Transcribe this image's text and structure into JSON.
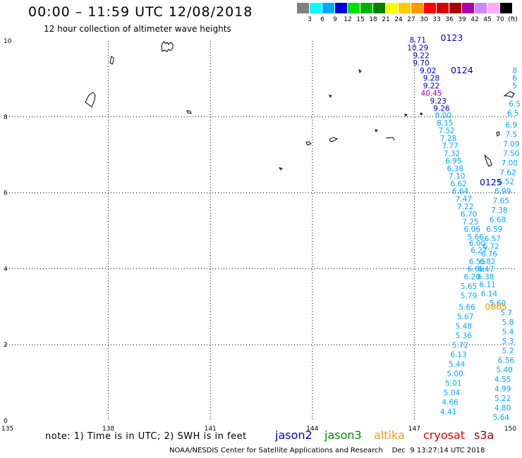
{
  "header": {
    "title": "00:00 – 11:59 UTC 12/08/2018",
    "subtitle": "12 hour collection of altimeter wave heights"
  },
  "color_scale": {
    "labels": [
      "3",
      "6",
      "9",
      "12",
      "15",
      "18",
      "21",
      "24",
      "27",
      "30",
      "33",
      "36",
      "39",
      "42",
      "45",
      "70",
      "(ft)"
    ],
    "colors": [
      "#808080",
      "#00ffff",
      "#00aaff",
      "#0000dd",
      "#00e000",
      "#00b000",
      "#008000",
      "#ffff00",
      "#ffcc00",
      "#ff9900",
      "#ff0000",
      "#dd0000",
      "#aa0000",
      "#aa00aa",
      "#cc88ff",
      "#ffaaff",
      "#000000"
    ]
  },
  "chart_data": {
    "type": "scatter",
    "xlim": [
      135,
      150
    ],
    "ylim": [
      0,
      10
    ],
    "x_ticks": [
      "135",
      "138",
      "141",
      "144",
      "147",
      "150"
    ],
    "y_ticks": [
      "0",
      "2",
      "4",
      "6",
      "8",
      "10"
    ],
    "grid": true,
    "units": "ft",
    "series": [
      {
        "name": "jason2",
        "color": "#0000cc",
        "points": [
          {
            "x": 147.1,
            "y": 9.95,
            "v": "8.71"
          },
          {
            "x": 147.1,
            "y": 9.75,
            "v": "10.29"
          },
          {
            "x": 147.2,
            "y": 9.55,
            "v": "9.22"
          },
          {
            "x": 147.2,
            "y": 9.35,
            "v": "9.70"
          },
          {
            "x": 147.4,
            "y": 9.15,
            "v": "9.02"
          },
          {
            "x": 147.5,
            "y": 8.95,
            "v": "9.28"
          },
          {
            "x": 147.5,
            "y": 8.75,
            "v": "9.22"
          },
          {
            "x": 147.5,
            "y": 8.55,
            "v": "40.45",
            "color": "#aa00aa"
          },
          {
            "x": 147.7,
            "y": 8.35,
            "v": "9.23"
          },
          {
            "x": 147.8,
            "y": 8.15,
            "v": "9.26"
          }
        ]
      },
      {
        "name": "jason2-track-a",
        "color": "#00aaff",
        "points": [
          {
            "x": 147.85,
            "y": 7.97,
            "v": "8.00"
          },
          {
            "x": 147.9,
            "y": 7.77,
            "v": "8.15"
          },
          {
            "x": 147.95,
            "y": 7.57,
            "v": "7.52"
          },
          {
            "x": 148.0,
            "y": 7.37,
            "v": "7.28"
          },
          {
            "x": 148.05,
            "y": 7.17,
            "v": "7.77"
          },
          {
            "x": 148.1,
            "y": 6.97,
            "v": "7.32"
          },
          {
            "x": 148.15,
            "y": 6.77,
            "v": "6.95"
          },
          {
            "x": 148.2,
            "y": 6.57,
            "v": "6.38"
          },
          {
            "x": 148.25,
            "y": 6.37,
            "v": "7.10"
          },
          {
            "x": 148.3,
            "y": 6.17,
            "v": "6.62"
          },
          {
            "x": 148.35,
            "y": 5.97,
            "v": "6.64"
          },
          {
            "x": 148.45,
            "y": 5.77,
            "v": "7.47"
          },
          {
            "x": 148.5,
            "y": 5.57,
            "v": "7.22"
          },
          {
            "x": 148.6,
            "y": 5.37,
            "v": "6.70"
          },
          {
            "x": 148.65,
            "y": 5.17,
            "v": "7.25"
          },
          {
            "x": 148.7,
            "y": 4.97,
            "v": "6.06"
          },
          {
            "x": 148.8,
            "y": 4.77,
            "v": "5.66"
          },
          {
            "x": 148.85,
            "y": 4.6,
            "v": "6.00"
          },
          {
            "x": 148.9,
            "y": 4.42,
            "v": "6.27"
          },
          {
            "x": 148.85,
            "y": 4.12,
            "v": "6.55"
          },
          {
            "x": 148.8,
            "y": 3.92,
            "v": "6.66"
          },
          {
            "x": 148.7,
            "y": 3.72,
            "v": "6.20"
          },
          {
            "x": 148.6,
            "y": 3.47,
            "v": "5.65"
          },
          {
            "x": 148.6,
            "y": 3.22,
            "v": "5.79"
          },
          {
            "x": 148.55,
            "y": 2.92,
            "v": "5.66"
          },
          {
            "x": 148.5,
            "y": 2.67,
            "v": "5.67"
          },
          {
            "x": 148.45,
            "y": 2.42,
            "v": "5.48"
          },
          {
            "x": 148.45,
            "y": 2.17,
            "v": "5.36"
          },
          {
            "x": 148.35,
            "y": 1.92,
            "v": "5.72"
          },
          {
            "x": 148.3,
            "y": 1.67,
            "v": "6.13"
          },
          {
            "x": 148.25,
            "y": 1.42,
            "v": "5.44"
          },
          {
            "x": 148.2,
            "y": 1.17,
            "v": "5.00"
          },
          {
            "x": 148.15,
            "y": 0.92,
            "v": "5.01"
          },
          {
            "x": 148.1,
            "y": 0.67,
            "v": "5.04"
          },
          {
            "x": 148.05,
            "y": 0.42,
            "v": "4.66"
          },
          {
            "x": 148.0,
            "y": 0.17,
            "v": "4.41"
          }
        ]
      },
      {
        "name": "jason2-track-b",
        "color": "#00aaff",
        "points": [
          {
            "x": 149.95,
            "y": 8.27,
            "v": "6.5"
          },
          {
            "x": 149.9,
            "y": 8.02,
            "v": "6.5"
          },
          {
            "x": 149.85,
            "y": 7.72,
            "v": "6.9"
          },
          {
            "x": 149.85,
            "y": 7.47,
            "v": "7.5"
          },
          {
            "x": 149.85,
            "y": 7.22,
            "v": "7.09"
          },
          {
            "x": 149.85,
            "y": 6.97,
            "v": "7.50"
          },
          {
            "x": 149.8,
            "y": 6.72,
            "v": "7.00"
          },
          {
            "x": 149.75,
            "y": 6.47,
            "v": "7.62"
          },
          {
            "x": 149.7,
            "y": 6.22,
            "v": "6.52"
          },
          {
            "x": 149.6,
            "y": 5.97,
            "v": "6.99"
          },
          {
            "x": 149.55,
            "y": 5.72,
            "v": "7.65"
          },
          {
            "x": 149.5,
            "y": 5.47,
            "v": "7.38"
          },
          {
            "x": 149.45,
            "y": 5.22,
            "v": "6.68"
          },
          {
            "x": 149.35,
            "y": 4.97,
            "v": "6.59"
          },
          {
            "x": 149.3,
            "y": 4.72,
            "v": "6.57"
          },
          {
            "x": 149.25,
            "y": 4.52,
            "v": "6.72"
          },
          {
            "x": 149.2,
            "y": 4.32,
            "v": "6.76"
          },
          {
            "x": 149.15,
            "y": 4.12,
            "v": "6.82"
          },
          {
            "x": 149.1,
            "y": 3.92,
            "v": "6.47"
          },
          {
            "x": 149.1,
            "y": 3.72,
            "v": "6.38"
          },
          {
            "x": 149.15,
            "y": 3.52,
            "v": "6.11"
          },
          {
            "x": 149.2,
            "y": 3.27,
            "v": "6.14"
          },
          {
            "x": 149.45,
            "y": 3.02,
            "v": "5.60"
          },
          {
            "x": 149.7,
            "y": 2.77,
            "v": "5.7"
          },
          {
            "x": 149.75,
            "y": 2.52,
            "v": "5.8"
          },
          {
            "x": 149.75,
            "y": 2.27,
            "v": "5.4"
          },
          {
            "x": 149.75,
            "y": 2.02,
            "v": "5.3"
          },
          {
            "x": 149.75,
            "y": 1.77,
            "v": "5.2"
          },
          {
            "x": 149.7,
            "y": 1.52,
            "v": "6.56"
          },
          {
            "x": 149.65,
            "y": 1.27,
            "v": "5.40"
          },
          {
            "x": 149.6,
            "y": 1.02,
            "v": "4.55"
          },
          {
            "x": 149.6,
            "y": 0.77,
            "v": "4.99"
          },
          {
            "x": 149.6,
            "y": 0.52,
            "v": "5.22"
          },
          {
            "x": 149.6,
            "y": 0.27,
            "v": "4.80"
          },
          {
            "x": 149.55,
            "y": 0.02,
            "v": "5.64"
          }
        ]
      },
      {
        "name": "jason2-track-c",
        "color": "#00aaff",
        "points": [
          {
            "x": 149.95,
            "y": 9.15,
            "v": "8"
          },
          {
            "x": 149.95,
            "y": 8.95,
            "v": "6"
          },
          {
            "x": 149.95,
            "y": 8.75,
            "v": "5"
          }
        ]
      }
    ],
    "time_labels": [
      {
        "x": 148.1,
        "y": 10.0,
        "v": "0123",
        "color": "#0000cc"
      },
      {
        "x": 148.4,
        "y": 9.15,
        "v": "0124",
        "color": "#0000cc"
      },
      {
        "x": 149.25,
        "y": 6.2,
        "v": "0125",
        "color": "#0000cc"
      },
      {
        "x": 149.4,
        "y": 2.92,
        "v": "0805",
        "color": "#ff9900"
      }
    ]
  },
  "legend": {
    "note": "note: 1) Time is in UTC; 2) SWH is in feet",
    "satellites": [
      {
        "label": "jason2",
        "color": "#0000cc"
      },
      {
        "label": "jason3",
        "color": "#008800"
      },
      {
        "label": "altika",
        "color": "#ff9900"
      },
      {
        "label": "cryosat",
        "color": "#dd0000"
      },
      {
        "label": "s3a",
        "color": "#990000"
      }
    ]
  },
  "credit": "NOAA/NESDIS Center for Satellite Applications and Research    Dec  9 13:27:14 UTC 2018"
}
